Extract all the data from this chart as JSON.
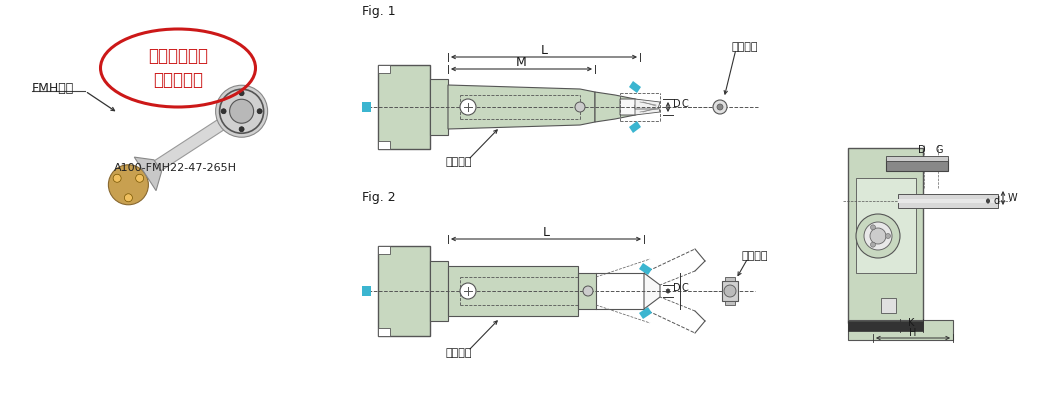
{
  "bg_color": "#ffffff",
  "light_green": "#c8d8c0",
  "cyan_accent": "#3bb5d0",
  "red_stamp": "#cc1818",
  "label_fmh": "FMH规格",
  "label_model": "A100-FMH22-47-265H",
  "label_stamp_line1": "增加长度不同",
  "label_stamp_line2": "的刀柄系列",
  "label_fig1": "Fig. 1",
  "label_fig2": "Fig. 2",
  "label_L": "L",
  "label_M": "M",
  "label_D": "D",
  "label_C": "C",
  "label_G": "G",
  "label_d": "d",
  "label_W": "W",
  "label_K": "K",
  "label_H": "H",
  "label_carbide": "硬质合金",
  "label_clamp": "夹持螺栓"
}
